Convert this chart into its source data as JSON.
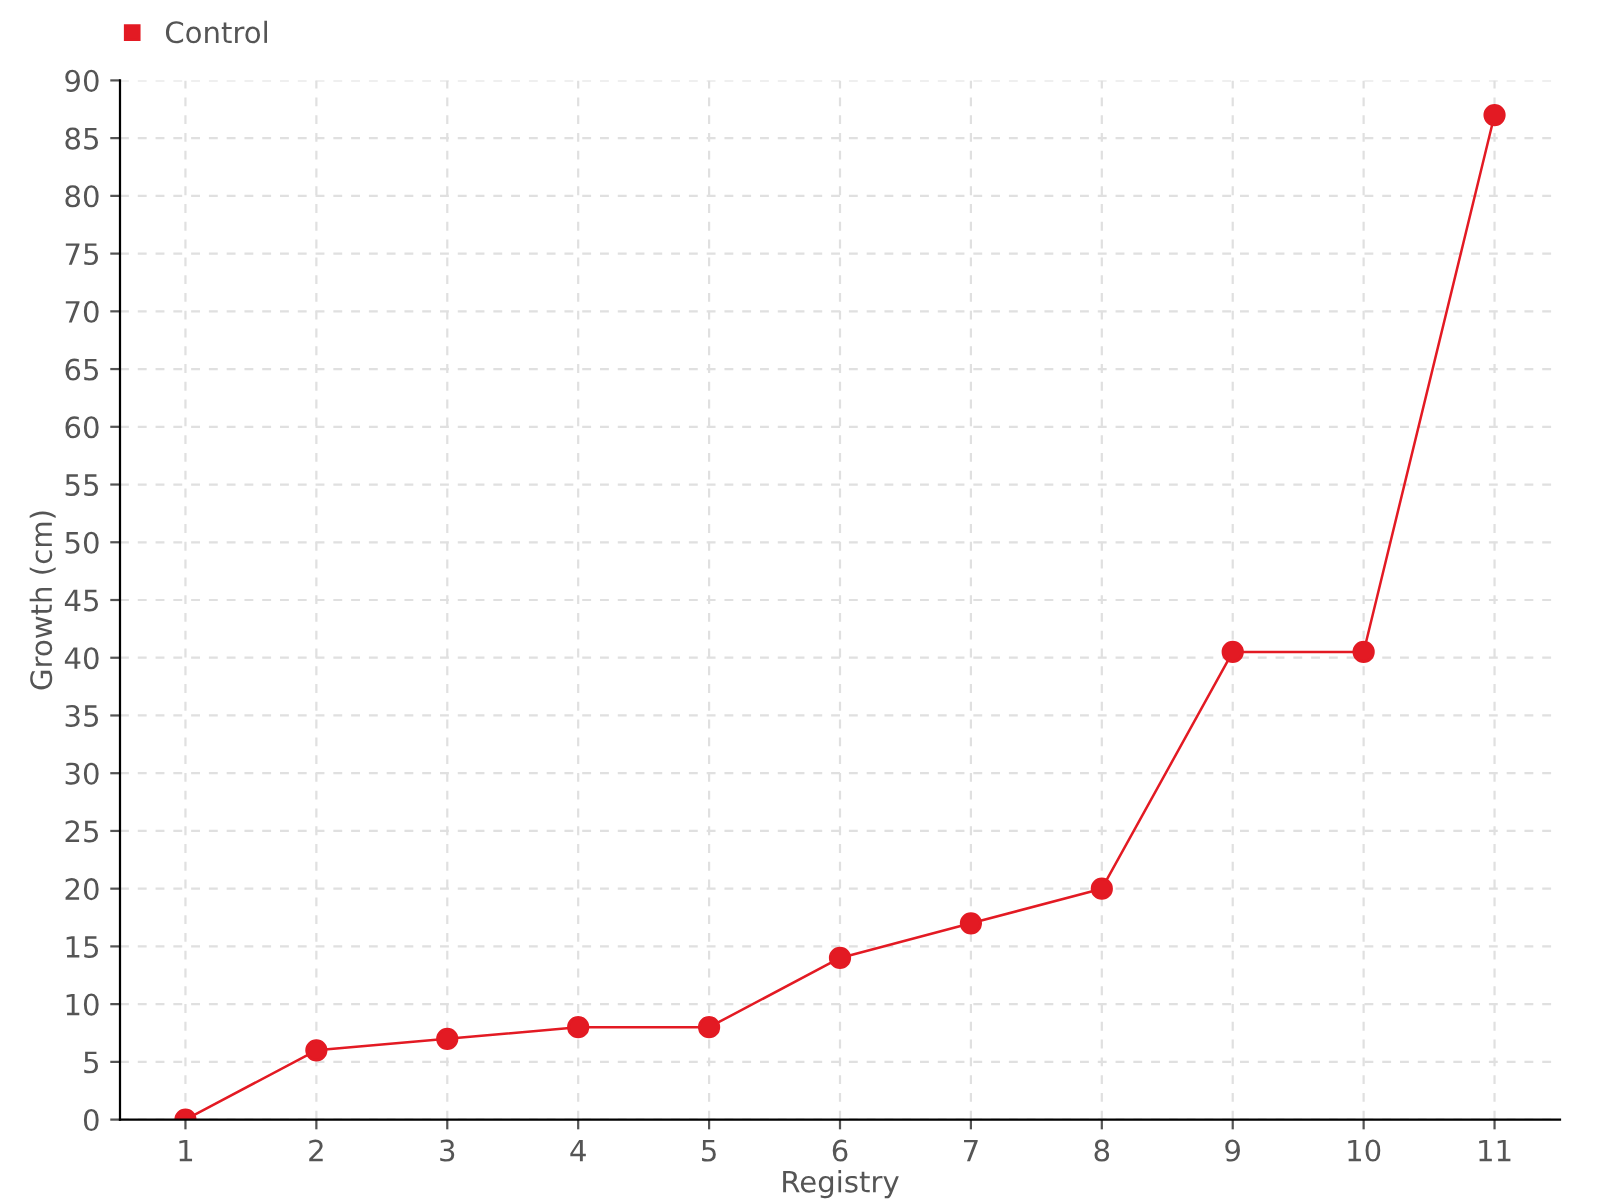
{
  "chart_data": {
    "type": "line",
    "xlabel": "Registry",
    "ylabel": "Growth (cm)",
    "categories": [
      "1",
      "2",
      "3",
      "4",
      "5",
      "6",
      "7",
      "8",
      "9",
      "10",
      "11"
    ],
    "series": [
      {
        "name": "Control",
        "color": "#e31a23",
        "values": [
          0,
          6,
          7,
          8,
          8,
          14,
          17,
          20,
          40.5,
          40.5,
          87
        ]
      }
    ],
    "ylim": [
      0,
      90
    ],
    "yticks": [
      0,
      5,
      10,
      15,
      20,
      25,
      30,
      35,
      40,
      45,
      50,
      55,
      60,
      65,
      70,
      75,
      80,
      85,
      90
    ],
    "grid": true,
    "legend": "top left",
    "marker": "circle",
    "line_style": "solid"
  }
}
